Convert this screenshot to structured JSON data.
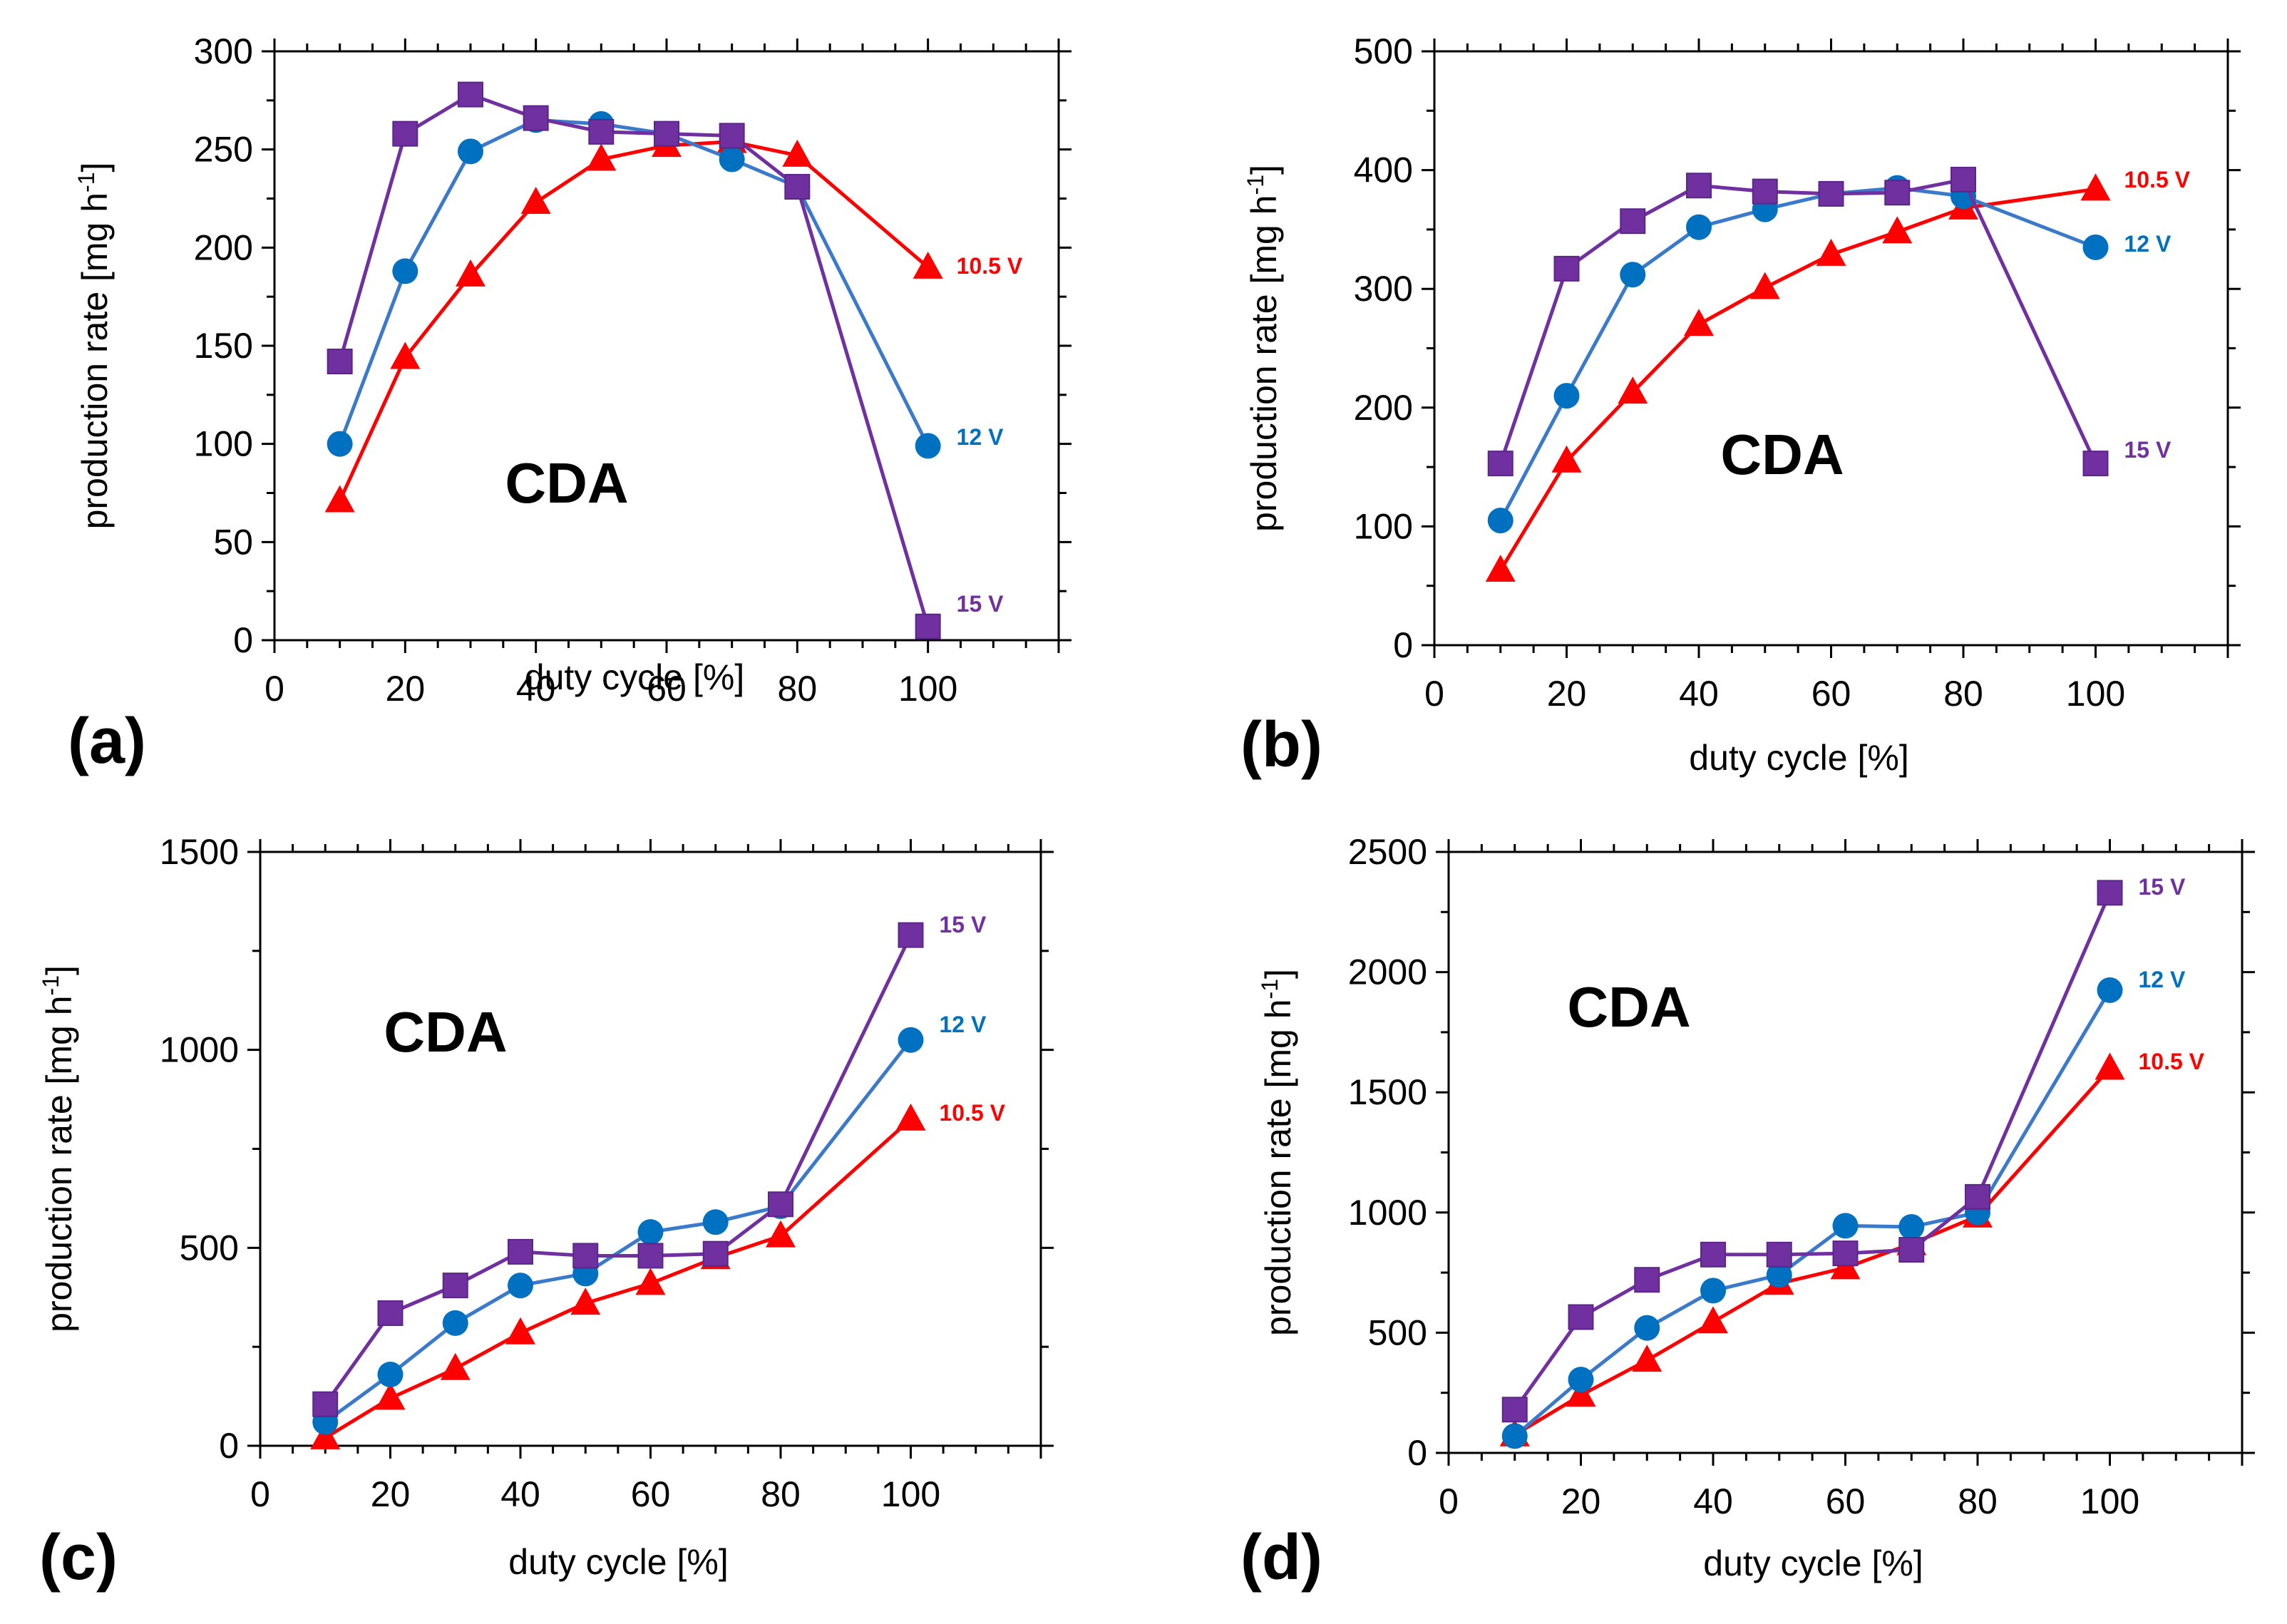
{
  "colors": {
    "15 V": "#7030A0",
    "12 V": "#3B7ACB",
    "10.5 V": "#FF0000",
    "15 V_marker": "#7030A0",
    "12 V_marker": "#0070C0",
    "10.5 V_marker": "#FF0000"
  },
  "chart_data": [
    {
      "type": "line",
      "panel_label": "(a)",
      "annotation": "CDA",
      "xlabel": "duty cycle [%]",
      "ylabel_main": "production rate [mg h",
      "ylabel_sup": "-1",
      "ylabel_end": "]",
      "xlim": [
        0,
        120
      ],
      "ylim": [
        0,
        300
      ],
      "xticks": [
        0,
        20,
        40,
        60,
        80,
        100
      ],
      "yticks": [
        0,
        50,
        100,
        150,
        200,
        250,
        300
      ],
      "x": [
        10,
        20,
        30,
        40,
        50,
        60,
        70,
        80,
        100
      ],
      "series": [
        {
          "name": "10.5 V",
          "marker": "triangle",
          "values": [
            71,
            144,
            186,
            223,
            245,
            252,
            254,
            247,
            190
          ]
        },
        {
          "name": "12 V",
          "marker": "circle",
          "values": [
            100,
            188,
            249,
            265,
            263,
            258,
            245,
            231,
            99
          ]
        },
        {
          "name": "15 V",
          "marker": "square",
          "values": [
            142,
            258,
            278,
            266,
            259,
            258,
            257,
            231,
            7
          ]
        }
      ]
    },
    {
      "type": "line",
      "panel_label": "(b)",
      "annotation": "CDA",
      "xlabel": "duty cycle [%]",
      "ylabel_main": "production rate [mg h",
      "ylabel_sup": "-1",
      "ylabel_end": "]",
      "xlim": [
        0,
        120
      ],
      "ylim": [
        0,
        500
      ],
      "xticks": [
        0,
        20,
        40,
        60,
        80,
        100
      ],
      "yticks": [
        0,
        100,
        200,
        300,
        400,
        500
      ],
      "x": [
        10,
        20,
        30,
        40,
        50,
        60,
        70,
        80,
        100
      ],
      "series": [
        {
          "name": "10.5 V",
          "marker": "triangle",
          "values": [
            63,
            155,
            213,
            270,
            301,
            329,
            348,
            368,
            384
          ]
        },
        {
          "name": "12 V",
          "marker": "circle",
          "values": [
            105,
            210,
            312,
            352,
            367,
            380,
            385,
            378,
            335
          ]
        },
        {
          "name": "15 V",
          "marker": "square",
          "values": [
            153,
            317,
            357,
            387,
            382,
            380,
            381,
            392,
            153
          ]
        }
      ]
    },
    {
      "type": "line",
      "panel_label": "(c)",
      "annotation": "CDA",
      "xlabel": "duty cycle [%]",
      "ylabel_main": "production rate [mg h",
      "ylabel_sup": "-1",
      "ylabel_end": "]",
      "xlim": [
        0,
        120
      ],
      "ylim": [
        0,
        1500
      ],
      "xticks": [
        0,
        20,
        40,
        60,
        80,
        100
      ],
      "yticks": [
        0,
        500,
        1000,
        1500
      ],
      "x": [
        10,
        20,
        30,
        40,
        50,
        60,
        70,
        80,
        100
      ],
      "series": [
        {
          "name": "10.5 V",
          "marker": "triangle",
          "values": [
            20,
            120,
            195,
            285,
            360,
            410,
            475,
            530,
            825
          ]
        },
        {
          "name": "12 V",
          "marker": "circle",
          "values": [
            60,
            180,
            310,
            405,
            435,
            540,
            565,
            605,
            1025
          ]
        },
        {
          "name": "15 V",
          "marker": "square",
          "values": [
            105,
            335,
            405,
            490,
            480,
            480,
            485,
            610,
            1290
          ]
        }
      ]
    },
    {
      "type": "line",
      "panel_label": "(d)",
      "annotation": "CDA",
      "xlabel": "duty cycle [%]",
      "ylabel_main": "production rate [mg h",
      "ylabel_sup": "-1",
      "ylabel_end": "]",
      "xlim": [
        0,
        120
      ],
      "ylim": [
        0,
        2500
      ],
      "xticks": [
        0,
        20,
        40,
        60,
        80,
        100
      ],
      "yticks": [
        0,
        500,
        1000,
        1500,
        2000,
        2500
      ],
      "x": [
        10,
        20,
        30,
        40,
        50,
        60,
        70,
        80,
        100
      ],
      "series": [
        {
          "name": "10.5 V",
          "marker": "triangle",
          "values": [
            75,
            240,
            385,
            545,
            705,
            770,
            870,
            985,
            1600
          ]
        },
        {
          "name": "12 V",
          "marker": "circle",
          "values": [
            70,
            305,
            520,
            675,
            740,
            945,
            940,
            1000,
            1925
          ]
        },
        {
          "name": "15 V",
          "marker": "square",
          "values": [
            180,
            565,
            720,
            825,
            825,
            830,
            845,
            1065,
            2330
          ]
        }
      ]
    }
  ]
}
